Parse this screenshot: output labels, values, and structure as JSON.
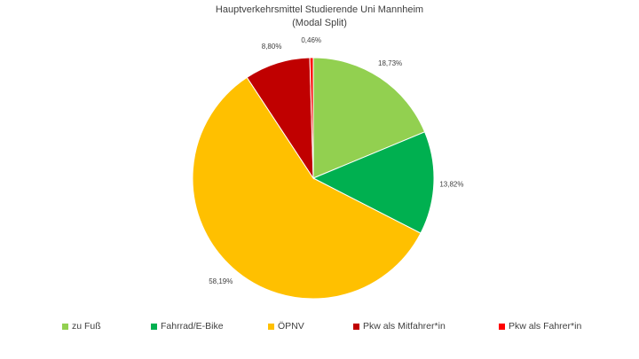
{
  "chart_data": {
    "type": "pie",
    "title": "Hauptverkehrsmittel Studierende Uni Mannheim",
    "subtitle": "(Modal Split)",
    "slices": [
      {
        "label": "zu Fuß",
        "value": 18.73,
        "value_label": "18,73%",
        "color": "#92D050"
      },
      {
        "label": "Fahrrad/E-Bike",
        "value": 13.82,
        "value_label": "13,82%",
        "color": "#00B050"
      },
      {
        "label": "ÖPNV",
        "value": 58.19,
        "value_label": "58,19%",
        "color": "#FFC000"
      },
      {
        "label": "Pkw als Mitfahrer*in",
        "value": 8.8,
        "value_label": "8,80%",
        "color": "#C00000"
      },
      {
        "label": "Pkw als Fahrer*in",
        "value": 0.46,
        "value_label": "0,46%",
        "color": "#FF0000"
      }
    ],
    "legend_position": "bottom"
  }
}
